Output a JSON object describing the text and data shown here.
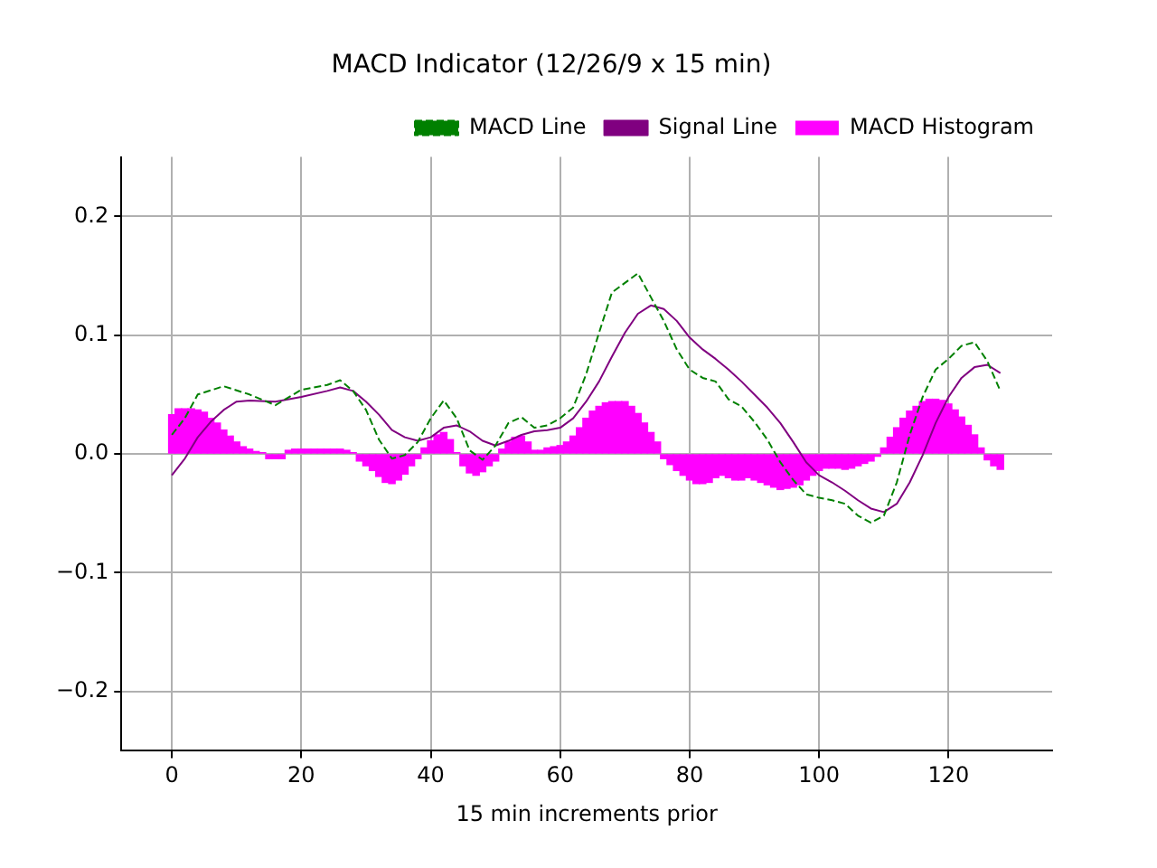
{
  "chart_data": {
    "type": "line",
    "title": "MACD Indicator (12/26/9 x 15 min)",
    "xlabel": "15 min increments prior",
    "xlim": [
      -7.8,
      136
    ],
    "xticks": [
      0,
      20,
      40,
      60,
      80,
      100,
      120
    ],
    "ylim": [
      -0.25,
      0.25
    ],
    "yticks": [
      {
        "value": -0.2,
        "label": "−0.2"
      },
      {
        "value": -0.1,
        "label": "−0.1"
      },
      {
        "value": 0,
        "label": "0.0"
      },
      {
        "value": 0.1,
        "label": "0.1"
      },
      {
        "value": 0.2,
        "label": "0.2"
      }
    ],
    "grid": true,
    "legend": "top right",
    "series": [
      {
        "name": "MACD Line",
        "color": "#008000",
        "line_style": "dashed",
        "x": [
          0,
          2,
          4,
          8,
          12,
          16,
          20,
          24,
          26,
          28,
          30,
          32,
          34,
          36,
          38,
          40,
          42,
          44,
          46,
          48,
          50,
          52,
          54,
          56,
          58,
          60,
          62,
          64,
          66,
          68,
          70,
          72,
          74,
          76,
          78,
          80,
          82,
          84,
          86,
          88,
          90,
          92,
          94,
          96,
          98,
          100,
          102,
          104,
          106,
          108,
          110,
          112,
          114,
          116,
          118,
          120,
          122,
          124,
          126,
          128
        ],
        "values": [
          0.016,
          0.03,
          0.05,
          0.057,
          0.05,
          0.041,
          0.054,
          0.058,
          0.062,
          0.053,
          0.037,
          0.012,
          -0.004,
          -0.001,
          0.01,
          0.03,
          0.045,
          0.03,
          0.003,
          -0.005,
          0.007,
          0.026,
          0.031,
          0.022,
          0.024,
          0.03,
          0.039,
          0.067,
          0.102,
          0.136,
          0.144,
          0.152,
          0.132,
          0.112,
          0.088,
          0.071,
          0.064,
          0.061,
          0.046,
          0.04,
          0.027,
          0.012,
          -0.007,
          -0.022,
          -0.034,
          -0.037,
          -0.039,
          -0.042,
          -0.052,
          -0.058,
          -0.052,
          -0.024,
          0.016,
          0.048,
          0.071,
          0.08,
          0.091,
          0.094,
          0.078,
          0.053
        ]
      },
      {
        "name": "Signal Line",
        "color": "#800080",
        "line_style": "solid",
        "x": [
          0,
          2,
          4,
          6,
          8,
          10,
          12,
          16,
          20,
          24,
          26,
          28,
          30,
          32,
          34,
          36,
          38,
          40,
          42,
          44,
          46,
          48,
          50,
          52,
          54,
          56,
          58,
          60,
          62,
          64,
          66,
          68,
          70,
          72,
          74,
          76,
          78,
          80,
          82,
          84,
          86,
          88,
          90,
          92,
          94,
          96,
          98,
          100,
          102,
          104,
          106,
          108,
          110,
          112,
          114,
          116,
          118,
          120,
          122,
          124,
          126,
          128
        ],
        "values": [
          -0.018,
          -0.004,
          0.014,
          0.027,
          0.037,
          0.044,
          0.045,
          0.044,
          0.048,
          0.053,
          0.056,
          0.053,
          0.044,
          0.033,
          0.02,
          0.014,
          0.011,
          0.014,
          0.022,
          0.024,
          0.019,
          0.011,
          0.007,
          0.011,
          0.016,
          0.019,
          0.02,
          0.022,
          0.03,
          0.044,
          0.061,
          0.082,
          0.102,
          0.118,
          0.125,
          0.122,
          0.112,
          0.098,
          0.088,
          0.08,
          0.071,
          0.061,
          0.05,
          0.039,
          0.026,
          0.01,
          -0.007,
          -0.018,
          -0.024,
          -0.031,
          -0.039,
          -0.046,
          -0.049,
          -0.042,
          -0.024,
          -0.001,
          0.026,
          0.048,
          0.064,
          0.073,
          0.075,
          0.068
        ]
      },
      {
        "name": "MACD Histogram",
        "type": "bar",
        "color": "#ff00ff",
        "x": [
          0,
          1,
          2,
          3,
          4,
          5,
          6,
          7,
          8,
          9,
          10,
          11,
          12,
          13,
          14,
          15,
          16,
          17,
          18,
          19,
          20,
          21,
          22,
          23,
          24,
          25,
          26,
          27,
          28,
          29,
          30,
          31,
          32,
          33,
          34,
          35,
          36,
          37,
          38,
          39,
          40,
          41,
          42,
          43,
          44,
          45,
          46,
          47,
          48,
          49,
          50,
          51,
          52,
          53,
          54,
          55,
          56,
          57,
          58,
          59,
          60,
          61,
          62,
          63,
          64,
          65,
          66,
          67,
          68,
          69,
          70,
          71,
          72,
          73,
          74,
          75,
          76,
          77,
          78,
          79,
          80,
          81,
          82,
          83,
          84,
          85,
          86,
          87,
          88,
          89,
          90,
          91,
          92,
          93,
          94,
          95,
          96,
          97,
          98,
          99,
          100,
          101,
          102,
          103,
          104,
          105,
          106,
          107,
          108,
          109,
          110,
          111,
          112,
          113,
          114,
          115,
          116,
          117,
          118,
          119,
          120,
          121,
          122,
          123,
          124,
          125,
          126,
          127,
          128
        ],
        "values": [
          0.033,
          0.038,
          0.038,
          0.038,
          0.037,
          0.035,
          0.03,
          0.026,
          0.02,
          0.015,
          0.01,
          0.006,
          0.004,
          0.002,
          0.001,
          -0.004,
          -0.004,
          -0.004,
          0.003,
          0.004,
          0.004,
          0.004,
          0.004,
          0.004,
          0.004,
          0.004,
          0.004,
          0.003,
          0.001,
          -0.006,
          -0.01,
          -0.014,
          -0.019,
          -0.024,
          -0.025,
          -0.022,
          -0.017,
          -0.01,
          -0.004,
          0.005,
          0.011,
          0.016,
          0.018,
          0.012,
          0.001,
          -0.01,
          -0.016,
          -0.018,
          -0.015,
          -0.01,
          -0.006,
          0.004,
          0.01,
          0.014,
          0.015,
          0.01,
          0.003,
          0.003,
          0.005,
          0.006,
          0.007,
          0.01,
          0.015,
          0.022,
          0.03,
          0.036,
          0.04,
          0.043,
          0.044,
          0.044,
          0.044,
          0.04,
          0.034,
          0.026,
          0.018,
          0.01,
          -0.004,
          -0.009,
          -0.014,
          -0.018,
          -0.022,
          -0.025,
          -0.025,
          -0.024,
          -0.02,
          -0.018,
          -0.02,
          -0.022,
          -0.022,
          -0.02,
          -0.022,
          -0.024,
          -0.026,
          -0.028,
          -0.03,
          -0.029,
          -0.028,
          -0.026,
          -0.022,
          -0.018,
          -0.014,
          -0.012,
          -0.012,
          -0.012,
          -0.013,
          -0.012,
          -0.01,
          -0.008,
          -0.006,
          -0.002,
          0.005,
          0.014,
          0.022,
          0.03,
          0.036,
          0.04,
          0.044,
          0.046,
          0.046,
          0.045,
          0.042,
          0.037,
          0.031,
          0.024,
          0.016,
          0.005,
          -0.005,
          -0.01,
          -0.013
        ]
      }
    ]
  }
}
